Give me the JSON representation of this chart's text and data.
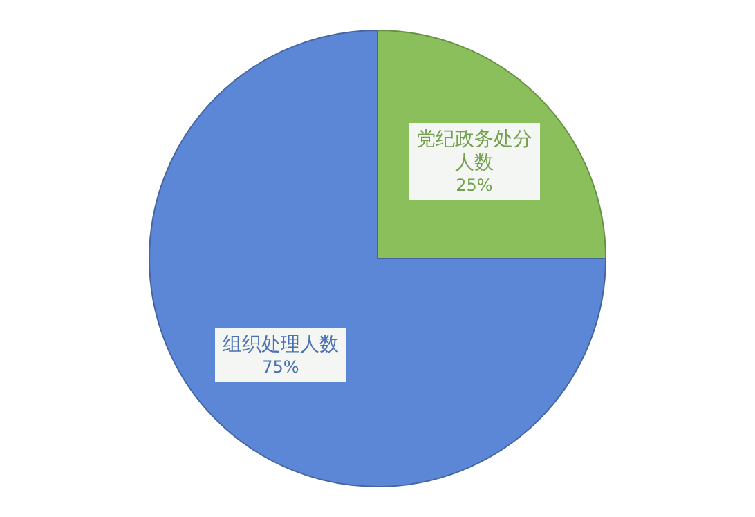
{
  "chart_data": {
    "type": "pie",
    "categories": [
      "党纪政务处分人数",
      "组织处理人数"
    ],
    "values": [
      25,
      75
    ],
    "colors": [
      "#8bbf5c",
      "#5b87d6"
    ],
    "value_labels": [
      "25%",
      "75%"
    ]
  }
}
